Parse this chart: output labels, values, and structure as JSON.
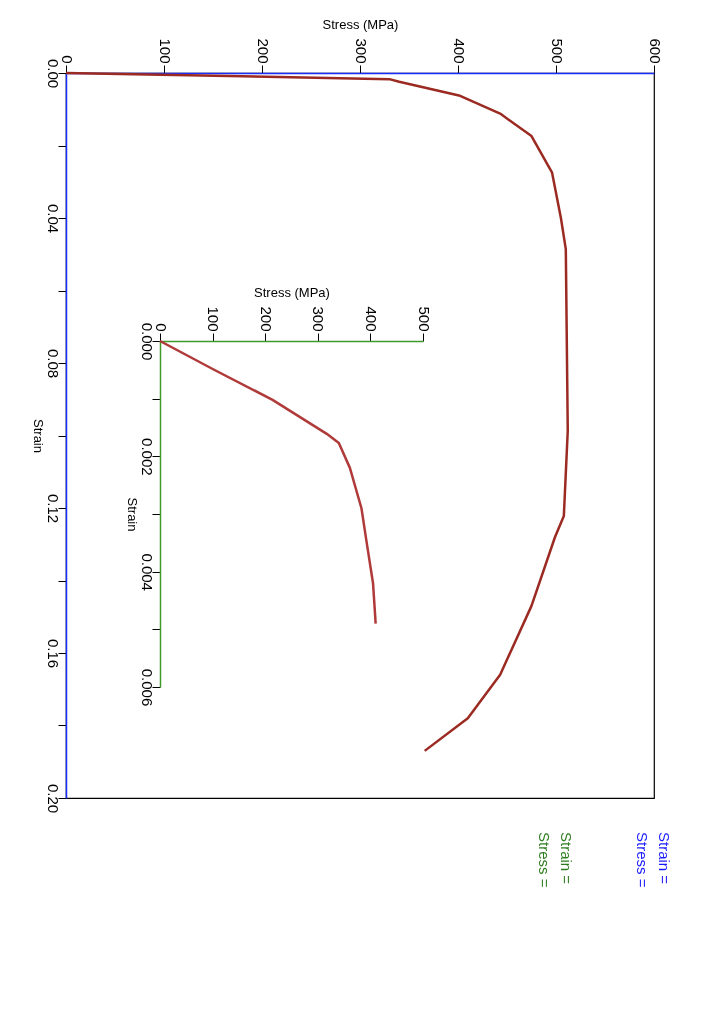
{
  "chart_data": [
    {
      "type": "line",
      "xlabel": "Stress (MPa)",
      "ylabel": "Strain",
      "xlim": [
        0,
        600
      ],
      "ylim": [
        0.2,
        0
      ],
      "yticks": [
        {
          "value": 0,
          "label": "0.00"
        },
        {
          "value": 0.02,
          "label": null
        },
        0.04,
        {
          "value": 0.06,
          "label": null
        },
        0.08,
        {
          "value": 0.1,
          "label": null
        },
        0.12,
        {
          "value": 0.14,
          "label": null
        },
        0.16,
        {
          "value": 0.18,
          "label": null
        },
        {
          "value": 0.2,
          "label": "0.20"
        }
      ],
      "xticks": [
        0,
        100,
        200,
        300,
        400,
        500,
        600
      ],
      "grid": false,
      "marker": "none",
      "line_style": "solid",
      "series": [
        {
          "color": "#9b2a22",
          "values": [
            0,
            0.0017,
            0.0024,
            0.0062,
            0.0112,
            0.0174,
            0.0275,
            0.04,
            0.0486,
            0.0987,
            0.1222,
            0.128,
            0.147,
            0.166,
            0.178,
            0.187
          ],
          "x": [
            0,
            330,
            340,
            401,
            443,
            475,
            496,
            505,
            510,
            512,
            508,
            499,
            475,
            443,
            410,
            366
          ]
        }
      ],
      "annotations": [
        "Strain =",
        "Stress ="
      ]
    },
    {
      "type": "line",
      "xlabel": "Stress (MPa)",
      "ylabel": "Strain",
      "xlim": [
        0,
        500
      ],
      "ylim": [
        0.006,
        0
      ],
      "yticks": [
        {
          "value": 0,
          "label": "0.000"
        },
        {
          "value": 0.001,
          "label": null
        },
        {
          "value": 0.002,
          "label": "0.002"
        },
        {
          "value": 0.003,
          "label": null
        },
        {
          "value": 0.004,
          "label": "0.004"
        },
        {
          "value": 0.005,
          "label": null
        },
        {
          "value": 0.006,
          "label": "0.006"
        }
      ],
      "xticks": [
        0,
        100,
        200,
        300,
        400,
        500
      ],
      "grid": false,
      "marker": "none",
      "line_style": "solid",
      "series": [
        {
          "color": "#b03a3a",
          "values": [
            0,
            0.00049,
            0.00102,
            0.00161,
            0.00177,
            0.0022,
            0.0029,
            0.00344,
            0.0042,
            0.0049
          ],
          "x": [
            0,
            101,
            214,
            317,
            340,
            361,
            383,
            392,
            405,
            410
          ]
        }
      ],
      "annotations": [
        "Strain =",
        "Stress ="
      ]
    }
  ]
}
